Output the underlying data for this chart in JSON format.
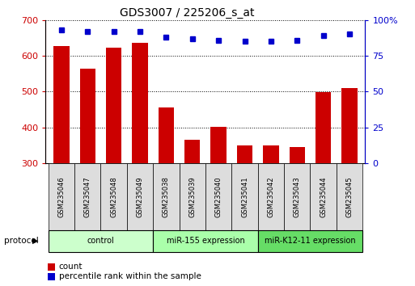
{
  "title": "GDS3007 / 225206_s_at",
  "samples": [
    "GSM235046",
    "GSM235047",
    "GSM235048",
    "GSM235049",
    "GSM235038",
    "GSM235039",
    "GSM235040",
    "GSM235041",
    "GSM235042",
    "GSM235043",
    "GSM235044",
    "GSM235045"
  ],
  "counts": [
    628,
    563,
    622,
    636,
    456,
    365,
    401,
    350,
    350,
    345,
    498,
    510
  ],
  "percentile": [
    93,
    92,
    92,
    92,
    88,
    87,
    86,
    85,
    85,
    86,
    89,
    90
  ],
  "groups": [
    {
      "label": "control",
      "start": 0,
      "end": 4,
      "color": "#ccffcc"
    },
    {
      "label": "miR-155 expression",
      "start": 4,
      "end": 8,
      "color": "#aaffaa"
    },
    {
      "label": "miR-K12-11 expression",
      "start": 8,
      "end": 12,
      "color": "#66dd66"
    }
  ],
  "bar_color": "#cc0000",
  "dot_color": "#0000cc",
  "ylim_left": [
    300,
    700
  ],
  "ylim_right": [
    0,
    100
  ],
  "yticks_left": [
    300,
    400,
    500,
    600,
    700
  ],
  "yticks_right": [
    0,
    25,
    50,
    75,
    100
  ],
  "label_color_left": "#cc0000",
  "label_color_right": "#0000cc",
  "title_fontsize": 10,
  "bar_width": 0.6,
  "protocol_label": "protocol",
  "legend_count_label": "count",
  "legend_percentile_label": "percentile rank within the sample"
}
